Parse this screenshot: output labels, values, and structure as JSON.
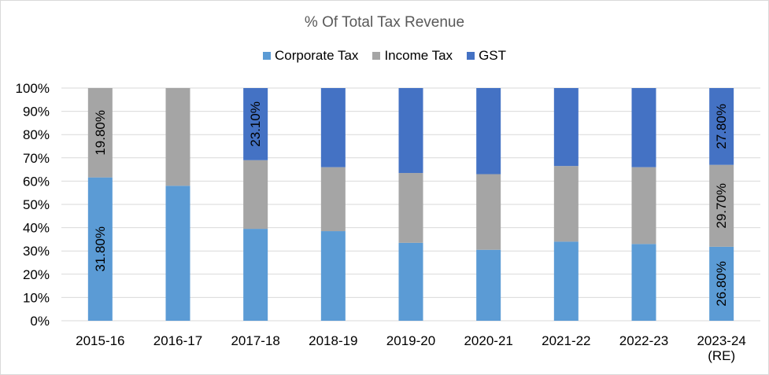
{
  "chart_data": {
    "type": "bar",
    "stacked": "percent",
    "title": "% Of Total Tax Revenue",
    "xlabel": "",
    "ylabel": "",
    "ylim": [
      0,
      100
    ],
    "yticks": [
      "0%",
      "10%",
      "20%",
      "30%",
      "40%",
      "50%",
      "60%",
      "70%",
      "80%",
      "90%",
      "100%"
    ],
    "grid": true,
    "legend_position": "top",
    "categories": [
      "2015-16",
      "2016-17",
      "2017-18",
      "2018-19",
      "2019-20",
      "2020-21",
      "2021-22",
      "2022-23",
      "2023-24\n(RE)"
    ],
    "series": [
      {
        "name": "Corporate Tax",
        "color": "#5b9bd5",
        "values": [
          61.6,
          58.0,
          39.5,
          38.5,
          33.5,
          30.5,
          34.0,
          33.0,
          31.8
        ],
        "labels": [
          "31.80%",
          null,
          null,
          null,
          null,
          null,
          null,
          null,
          "26.80%"
        ]
      },
      {
        "name": "Income Tax",
        "color": "#a5a5a5",
        "values": [
          38.4,
          42.0,
          29.5,
          27.5,
          30.0,
          32.5,
          32.5,
          33.0,
          35.2
        ],
        "labels": [
          "19.80%",
          null,
          null,
          null,
          null,
          null,
          null,
          null,
          "29.70%"
        ]
      },
      {
        "name": "GST",
        "color": "#4472c4",
        "values": [
          0,
          0,
          31.0,
          34.0,
          36.5,
          37.0,
          33.5,
          34.0,
          33.0
        ],
        "labels": [
          null,
          null,
          "23.10%",
          null,
          null,
          null,
          null,
          null,
          "27.80%"
        ]
      }
    ]
  }
}
